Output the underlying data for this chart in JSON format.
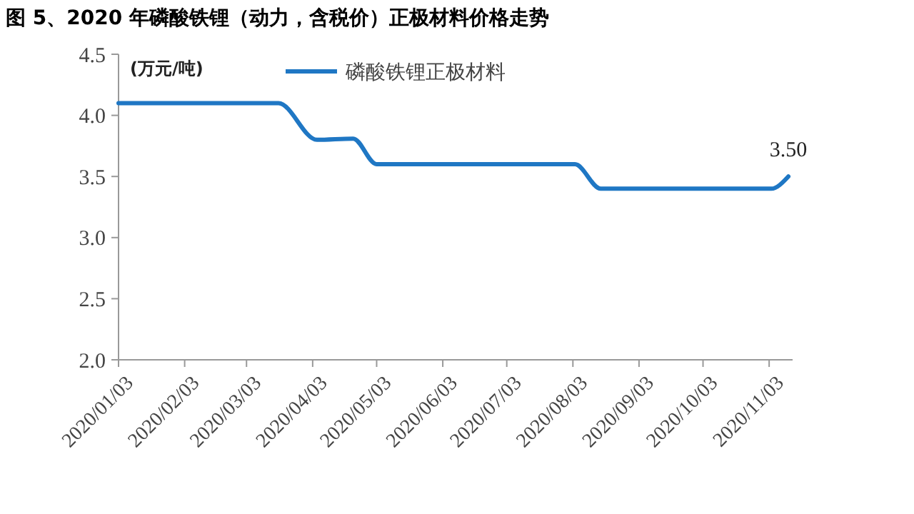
{
  "chart_data": {
    "type": "line",
    "title": "图 5、2020 年磷酸铁锂（动力，含税价）正极材料价格走势",
    "ylabel": "(万元/吨)",
    "x": [
      "2020-01-03",
      "2020-03-18",
      "2020-04-05",
      "2020-04-22",
      "2020-05-03",
      "2020-08-04",
      "2020-08-16",
      "2020-11-04",
      "2020-11-12"
    ],
    "series": [
      {
        "name": "磷酸铁锂正极材料",
        "color": "#1f77c4",
        "values": [
          4.1,
          4.1,
          3.8,
          3.81,
          3.6,
          3.6,
          3.4,
          3.4,
          3.5
        ],
        "value_labels": [
          null,
          null,
          null,
          null,
          null,
          null,
          null,
          null,
          "3.50"
        ]
      }
    ],
    "xlim": [
      "2020-01-03",
      "2020-11-14"
    ],
    "xticks": [
      {
        "value": "2020-01-03",
        "label": "2020/01/03"
      },
      {
        "value": "2020-02-03",
        "label": "2020/02/03"
      },
      {
        "value": "2020-03-03",
        "label": "2020/03/03"
      },
      {
        "value": "2020-04-03",
        "label": "2020/04/03"
      },
      {
        "value": "2020-05-03",
        "label": "2020/05/03"
      },
      {
        "value": "2020-06-03",
        "label": "2020/06/03"
      },
      {
        "value": "2020-07-03",
        "label": "2020/07/03"
      },
      {
        "value": "2020-08-03",
        "label": "2020/08/03"
      },
      {
        "value": "2020-09-03",
        "label": "2020/09/03"
      },
      {
        "value": "2020-10-03",
        "label": "2020/10/03"
      },
      {
        "value": "2020-11-03",
        "label": "2020/11/03"
      }
    ],
    "ylim": [
      2.0,
      4.5
    ],
    "yticks": [
      {
        "value": 2.0,
        "label": "2.0"
      },
      {
        "value": 2.5,
        "label": "2.5"
      },
      {
        "value": 3.0,
        "label": "3.0"
      },
      {
        "value": 3.5,
        "label": "3.5"
      },
      {
        "value": 4.0,
        "label": "4.0"
      },
      {
        "value": 4.5,
        "label": "4.5"
      }
    ],
    "grid": false,
    "legend": "top",
    "line_style": "solid",
    "marker": "none"
  }
}
